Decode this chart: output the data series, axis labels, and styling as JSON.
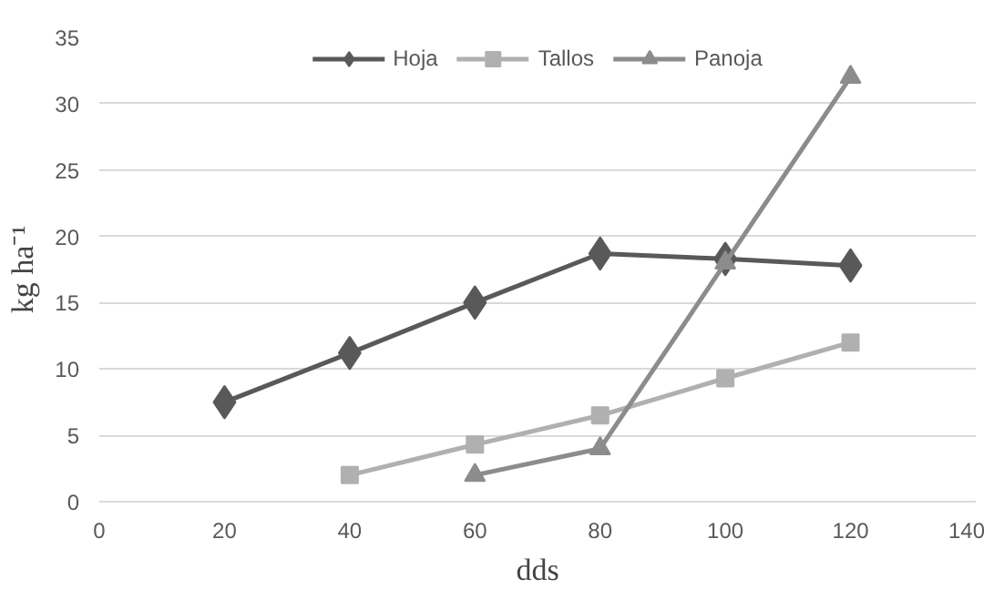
{
  "chart_data": {
    "type": "line",
    "xlabel": "dds",
    "ylabel": "kg ha⁻¹",
    "x": [
      20,
      40,
      60,
      80,
      100,
      120
    ],
    "series": [
      {
        "name": "Hoja",
        "color": "#595959",
        "marker": "diamond",
        "values": [
          7.5,
          11.2,
          15,
          18.7,
          18.3,
          17.8
        ]
      },
      {
        "name": "Tallos",
        "color": "#b0b0b0",
        "marker": "square",
        "values": [
          null,
          2,
          4.3,
          6.5,
          9.3,
          12
        ]
      },
      {
        "name": "Panoja",
        "color": "#8c8c8c",
        "marker": "triangle",
        "values": [
          null,
          null,
          2,
          4,
          18,
          32
        ]
      }
    ],
    "xlim": [
      0,
      140
    ],
    "xticks": [
      0,
      20,
      40,
      60,
      80,
      100,
      120,
      140
    ],
    "ylim": [
      0,
      35
    ],
    "yticks": [
      0,
      5,
      10,
      15,
      20,
      25,
      30,
      35
    ],
    "grid": "y",
    "legend": "top",
    "line_style": "solid"
  }
}
